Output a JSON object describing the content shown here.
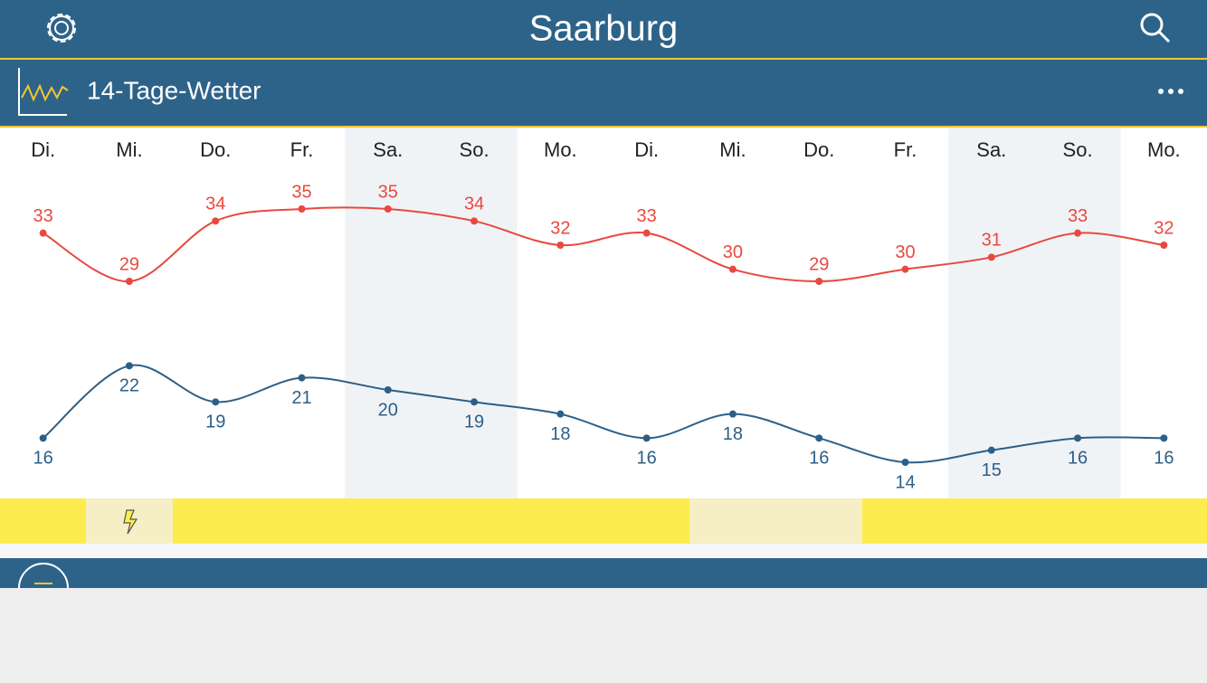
{
  "header": {
    "title": "Saarburg"
  },
  "section": {
    "title": "14-Tage-Wetter"
  },
  "chart_data": {
    "type": "line",
    "categories": [
      "Di.",
      "Mi.",
      "Do.",
      "Fr.",
      "Sa.",
      "So.",
      "Mo.",
      "Di.",
      "Mi.",
      "Do.",
      "Fr.",
      "Sa.",
      "So.",
      "Mo."
    ],
    "series": [
      {
        "color": "#e8493f",
        "values": [
          33,
          29,
          34,
          35,
          35,
          34,
          32,
          33,
          30,
          29,
          30,
          31,
          33,
          32
        ]
      },
      {
        "color": "#2d5f86",
        "values": [
          16,
          22,
          19,
          21,
          20,
          19,
          18,
          16,
          18,
          16,
          14,
          15,
          16,
          16
        ]
      }
    ]
  }
}
